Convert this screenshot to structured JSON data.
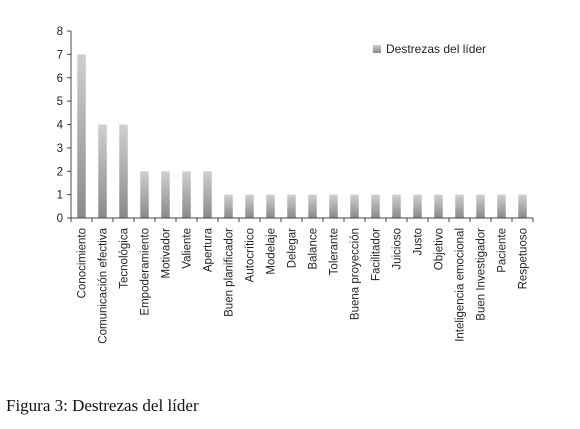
{
  "caption": {
    "label": "Figura 3:",
    "text": "Destrezas del líder"
  },
  "colors": {
    "bar_light": "#cfcfcf",
    "bar_dark": "#8a8a8a",
    "axis": "#444444",
    "text": "#222222"
  },
  "chart_data": {
    "type": "bar",
    "categories": [
      "Conocimiento",
      "Comunicación efectiva",
      "Tecnológica",
      "Empoderamiento",
      "Motivador",
      "Valiente",
      "Apertura",
      "Buen planificador",
      "Autocrítico",
      "Modelaje",
      "Delegar",
      "Balance",
      "Tolerante",
      "Buena proyección",
      "Facilitador",
      "Juicioso",
      "Justo",
      "Objetivo",
      "Inteligencia emocional",
      "Buen Investigador",
      "Paciente",
      "Respetuoso"
    ],
    "series": [
      {
        "name": "Destrezas del líder",
        "values": [
          7,
          4,
          4,
          2,
          2,
          2,
          2,
          1,
          1,
          1,
          1,
          1,
          1,
          1,
          1,
          1,
          1,
          1,
          1,
          1,
          1,
          1
        ]
      }
    ],
    "yticks": [
      "0",
      "1",
      "2",
      "3",
      "4",
      "5",
      "6",
      "7",
      "8"
    ],
    "ylim": [
      0,
      8
    ],
    "grid": false,
    "legend": "top-right",
    "xlabel": "",
    "ylabel": ""
  }
}
